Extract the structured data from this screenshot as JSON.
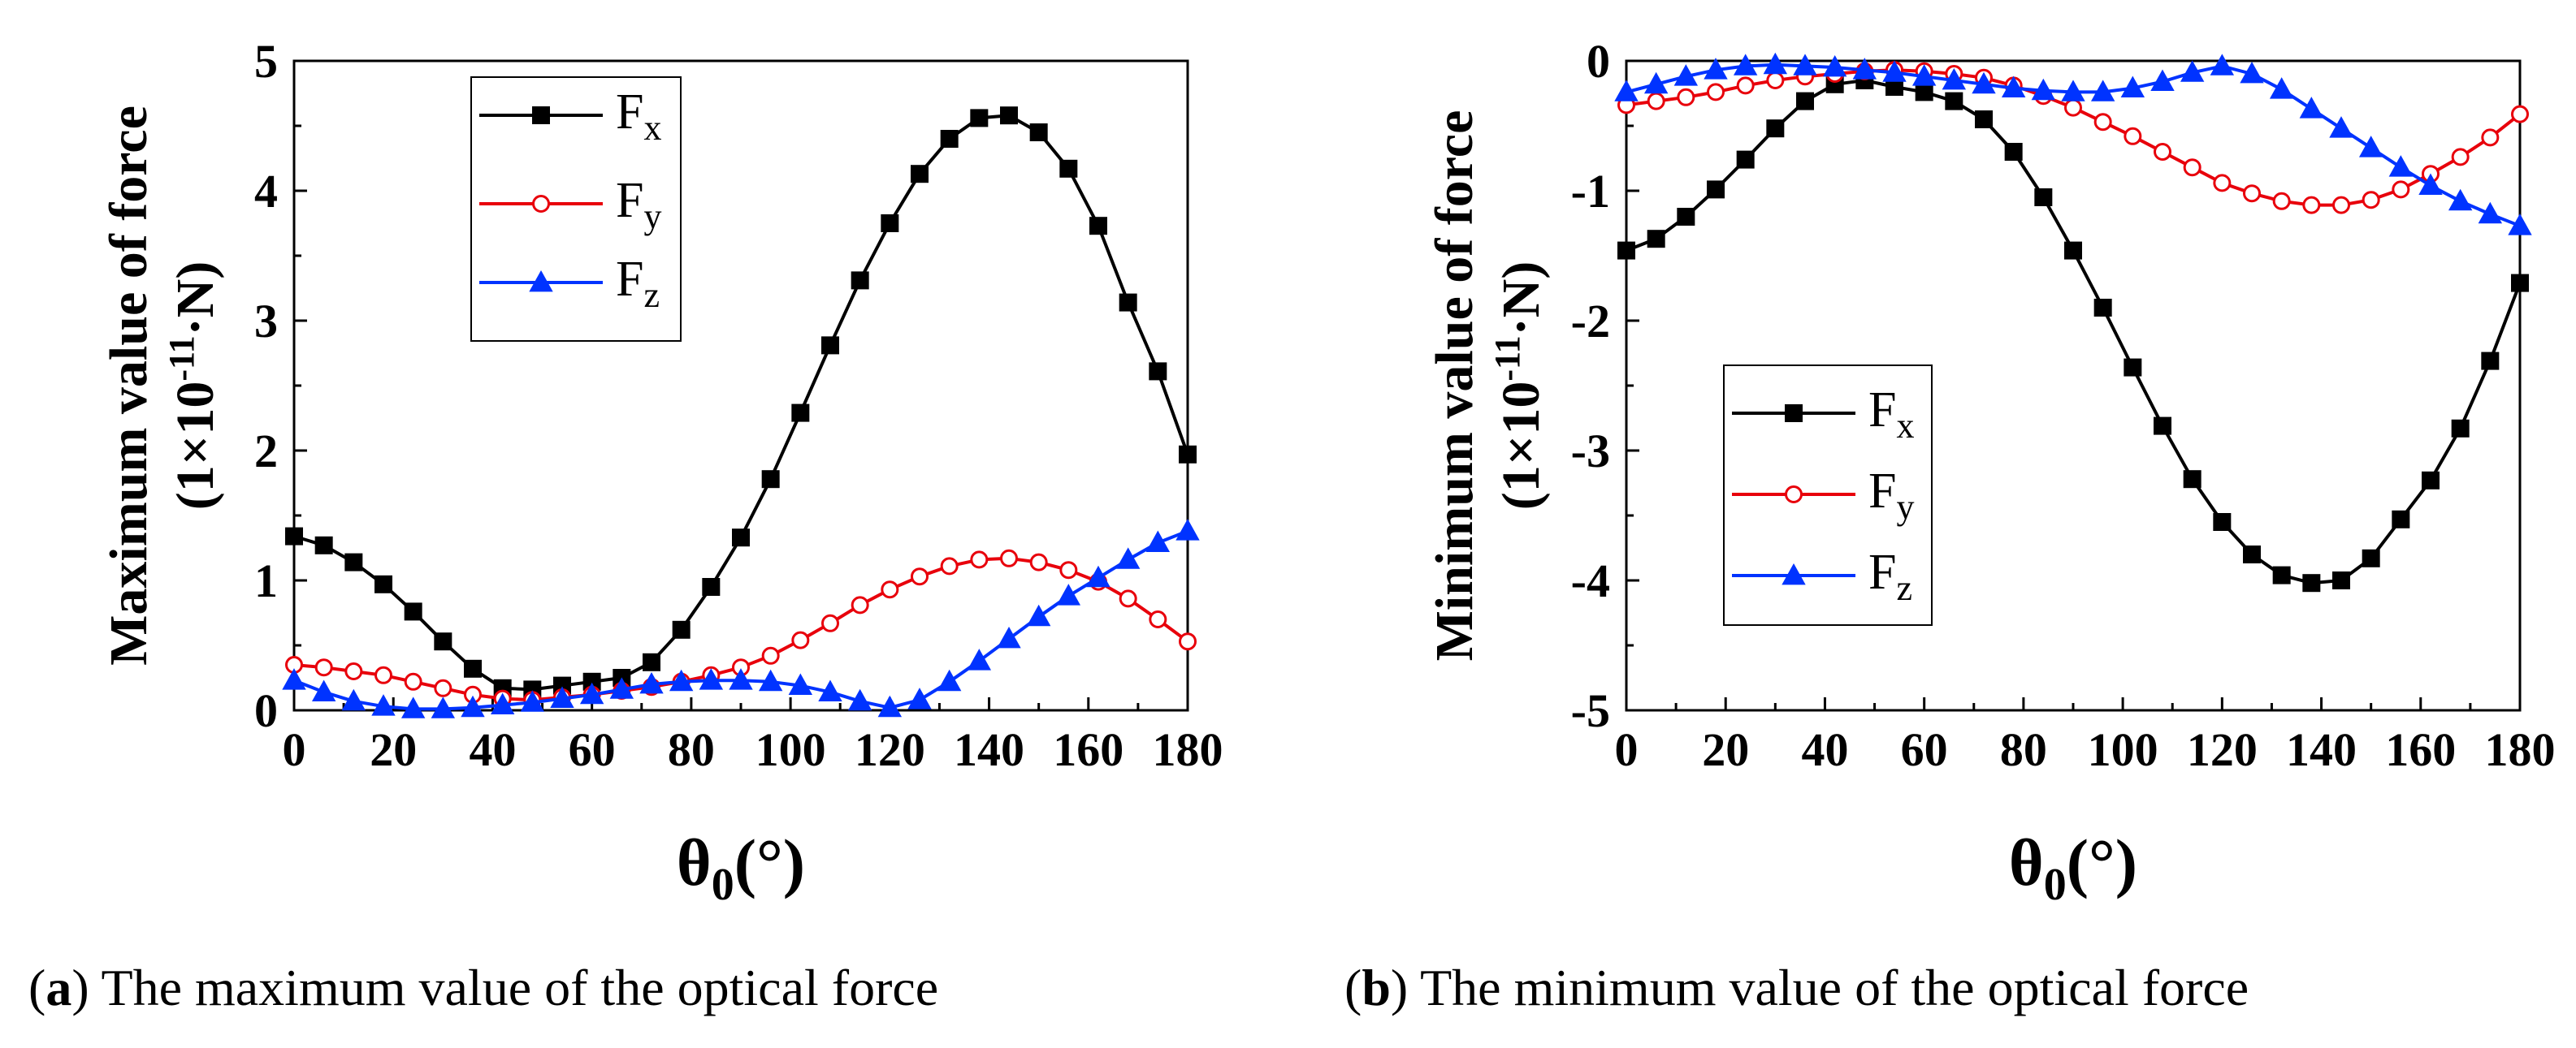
{
  "chart_data": [
    {
      "id": "a",
      "type": "line",
      "ylabel_line1": "Maximum value of force",
      "ylabel_line2_open": "(1×10",
      "ylabel_line2_exp": "-11",
      "ylabel_line2_close": "·N)",
      "xlabel_main": "θ",
      "xlabel_sub": "0",
      "xlabel_unit": "(°)",
      "xlim": [
        0,
        180
      ],
      "ylim": [
        0,
        5
      ],
      "xticks": [
        "0",
        "20",
        "40",
        "60",
        "80",
        "100",
        "120",
        "140",
        "160",
        "180"
      ],
      "yticks": [
        "0",
        "1",
        "2",
        "3",
        "4",
        "5"
      ],
      "legend_position": "top-left",
      "caption_letter": "a",
      "caption_open": "(",
      "caption_close": ")",
      "caption_text": " The maximum value of the optical force",
      "x": [
        0,
        6,
        12,
        18,
        24,
        30,
        36,
        42,
        48,
        54,
        60,
        66,
        72,
        78,
        84,
        90,
        96,
        102,
        108,
        114,
        120,
        126,
        132,
        138,
        144,
        150,
        156,
        162,
        168,
        174,
        180
      ],
      "series": [
        {
          "name": "F",
          "sub": "x",
          "color": "#000000",
          "marker": "square",
          "values": [
            1.34,
            1.27,
            1.14,
            0.97,
            0.76,
            0.53,
            0.32,
            0.17,
            0.16,
            0.19,
            0.22,
            0.25,
            0.37,
            0.62,
            0.95,
            1.33,
            1.78,
            2.29,
            2.81,
            3.31,
            3.75,
            4.13,
            4.4,
            4.56,
            4.58,
            4.45,
            4.17,
            3.73,
            3.14,
            2.61,
            1.97
          ]
        },
        {
          "name": "F",
          "sub": "y",
          "color": "#e8000b",
          "marker": "circle",
          "values": [
            0.35,
            0.33,
            0.3,
            0.27,
            0.22,
            0.17,
            0.12,
            0.09,
            0.08,
            0.1,
            0.12,
            0.15,
            0.18,
            0.22,
            0.27,
            0.33,
            0.42,
            0.54,
            0.67,
            0.81,
            0.93,
            1.03,
            1.11,
            1.16,
            1.17,
            1.14,
            1.08,
            0.99,
            0.86,
            0.7,
            0.53
          ]
        },
        {
          "name": "F",
          "sub": "z",
          "color": "#0033ff",
          "marker": "triangle",
          "values": [
            0.23,
            0.14,
            0.07,
            0.03,
            0.01,
            0.01,
            0.02,
            0.04,
            0.06,
            0.09,
            0.12,
            0.16,
            0.2,
            0.22,
            0.23,
            0.23,
            0.22,
            0.19,
            0.14,
            0.07,
            0.02,
            0.08,
            0.22,
            0.38,
            0.55,
            0.72,
            0.88,
            1.02,
            1.16,
            1.29,
            1.38
          ]
        }
      ]
    },
    {
      "id": "b",
      "type": "line",
      "ylabel_line1": "Minimum value of force",
      "ylabel_line2_open": "(1×10",
      "ylabel_line2_exp": "-11",
      "ylabel_line2_close": "·N)",
      "xlabel_main": "θ",
      "xlabel_sub": "0",
      "xlabel_unit": "(°)",
      "xlim": [
        0,
        180
      ],
      "ylim": [
        -5,
        0
      ],
      "xticks": [
        "0",
        "20",
        "40",
        "60",
        "80",
        "100",
        "120",
        "140",
        "160",
        "180"
      ],
      "yticks": [
        "0",
        "-1",
        "-2",
        "-3",
        "-4",
        "-5"
      ],
      "legend_position": "center-left",
      "caption_letter": "b",
      "caption_open": "(",
      "caption_close": ")",
      "caption_text": " The minimum value of the optical force",
      "x": [
        0,
        6,
        12,
        18,
        24,
        30,
        36,
        42,
        48,
        54,
        60,
        66,
        72,
        78,
        84,
        90,
        96,
        102,
        108,
        114,
        120,
        126,
        132,
        138,
        144,
        150,
        156,
        162,
        168,
        174,
        180
      ],
      "series": [
        {
          "name": "F",
          "sub": "x",
          "color": "#000000",
          "marker": "square",
          "values": [
            -1.46,
            -1.37,
            -1.2,
            -0.99,
            -0.76,
            -0.52,
            -0.31,
            -0.18,
            -0.15,
            -0.2,
            -0.24,
            -0.31,
            -0.45,
            -0.7,
            -1.05,
            -1.46,
            -1.9,
            -2.36,
            -2.81,
            -3.22,
            -3.55,
            -3.8,
            -3.96,
            -4.02,
            -4.0,
            -3.83,
            -3.53,
            -3.23,
            -2.83,
            -2.31,
            -1.71
          ]
        },
        {
          "name": "F",
          "sub": "y",
          "color": "#e8000b",
          "marker": "circle",
          "values": [
            -0.34,
            -0.31,
            -0.28,
            -0.24,
            -0.19,
            -0.15,
            -0.12,
            -0.1,
            -0.08,
            -0.07,
            -0.08,
            -0.1,
            -0.13,
            -0.19,
            -0.27,
            -0.36,
            -0.47,
            -0.58,
            -0.7,
            -0.82,
            -0.94,
            -1.02,
            -1.08,
            -1.11,
            -1.11,
            -1.07,
            -0.99,
            -0.87,
            -0.74,
            -0.59,
            -0.41
          ]
        },
        {
          "name": "F",
          "sub": "z",
          "color": "#0033ff",
          "marker": "triangle",
          "values": [
            -0.24,
            -0.18,
            -0.12,
            -0.07,
            -0.04,
            -0.03,
            -0.04,
            -0.05,
            -0.07,
            -0.09,
            -0.12,
            -0.15,
            -0.18,
            -0.21,
            -0.23,
            -0.24,
            -0.24,
            -0.21,
            -0.16,
            -0.09,
            -0.04,
            -0.1,
            -0.22,
            -0.37,
            -0.52,
            -0.67,
            -0.82,
            -0.96,
            -1.08,
            -1.18,
            -1.27
          ]
        }
      ]
    }
  ]
}
